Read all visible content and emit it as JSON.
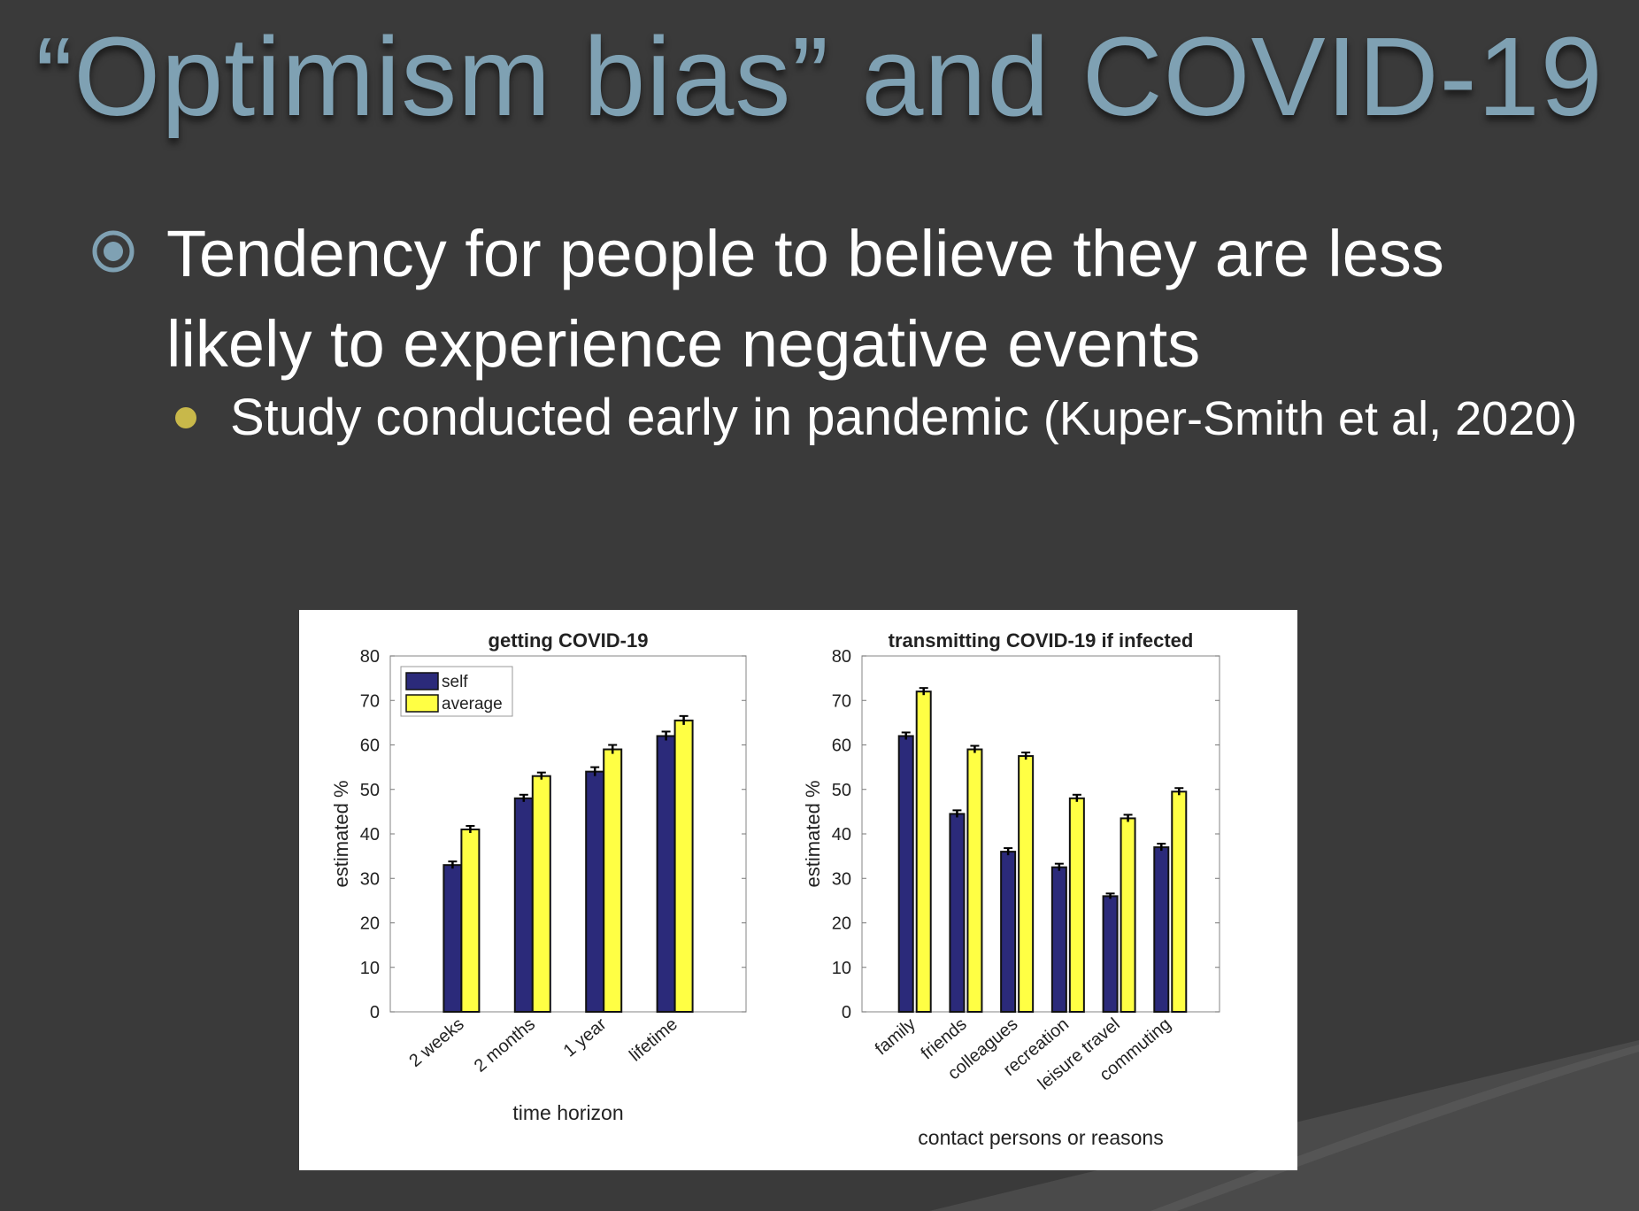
{
  "slide": {
    "title": "“Optimism bias” and COVID-19",
    "bullet": "Tendency for people to believe they are less likely to experience negative events",
    "sub_bullet": "Study conducted early in pandemic",
    "citation": "(Kuper-Smith et al, 2020)",
    "colors": {
      "title": "#7fa1b3",
      "bullet_icon": "#7fa1b3",
      "sub_bullet_dot": "#c8b84a",
      "self": "#2b2a7a",
      "average": "#ffff44"
    },
    "bullet_icon": "target-circle-icon"
  },
  "chart_data": [
    {
      "type": "bar",
      "title": "getting COVID-19",
      "xlabel": "time horizon",
      "ylabel": "estimated %",
      "ylim": [
        0,
        80
      ],
      "yticks": [
        "0",
        "10",
        "20",
        "30",
        "40",
        "50",
        "60",
        "70",
        "80"
      ],
      "categories": [
        "2 weeks",
        "2 months",
        "1 year",
        "lifetime"
      ],
      "series": [
        {
          "name": "self",
          "values": [
            33,
            48,
            54,
            62
          ],
          "errors": [
            0.8,
            0.8,
            1,
            1
          ]
        },
        {
          "name": "average",
          "values": [
            41,
            53,
            59,
            65.5
          ],
          "errors": [
            0.8,
            0.8,
            1,
            1
          ]
        }
      ],
      "legend": "top-left",
      "grid": false
    },
    {
      "type": "bar",
      "title": "transmitting COVID-19 if infected",
      "xlabel": "contact persons or reasons",
      "ylabel": "estimated %",
      "ylim": [
        0,
        80
      ],
      "yticks": [
        "0",
        "10",
        "20",
        "30",
        "40",
        "50",
        "60",
        "70",
        "80"
      ],
      "categories": [
        "family",
        "friends",
        "colleagues",
        "recreation",
        "leisure travel",
        "commuting"
      ],
      "series": [
        {
          "name": "self",
          "values": [
            62,
            44.5,
            36,
            32.5,
            26,
            37
          ],
          "errors": [
            0.8,
            0.8,
            0.8,
            0.8,
            0.6,
            0.8
          ]
        },
        {
          "name": "average",
          "values": [
            72,
            59,
            57.5,
            48,
            43.5,
            49.5
          ],
          "errors": [
            0.8,
            0.8,
            0.8,
            0.8,
            0.8,
            0.8
          ]
        }
      ],
      "legend": "none",
      "grid": false
    }
  ]
}
